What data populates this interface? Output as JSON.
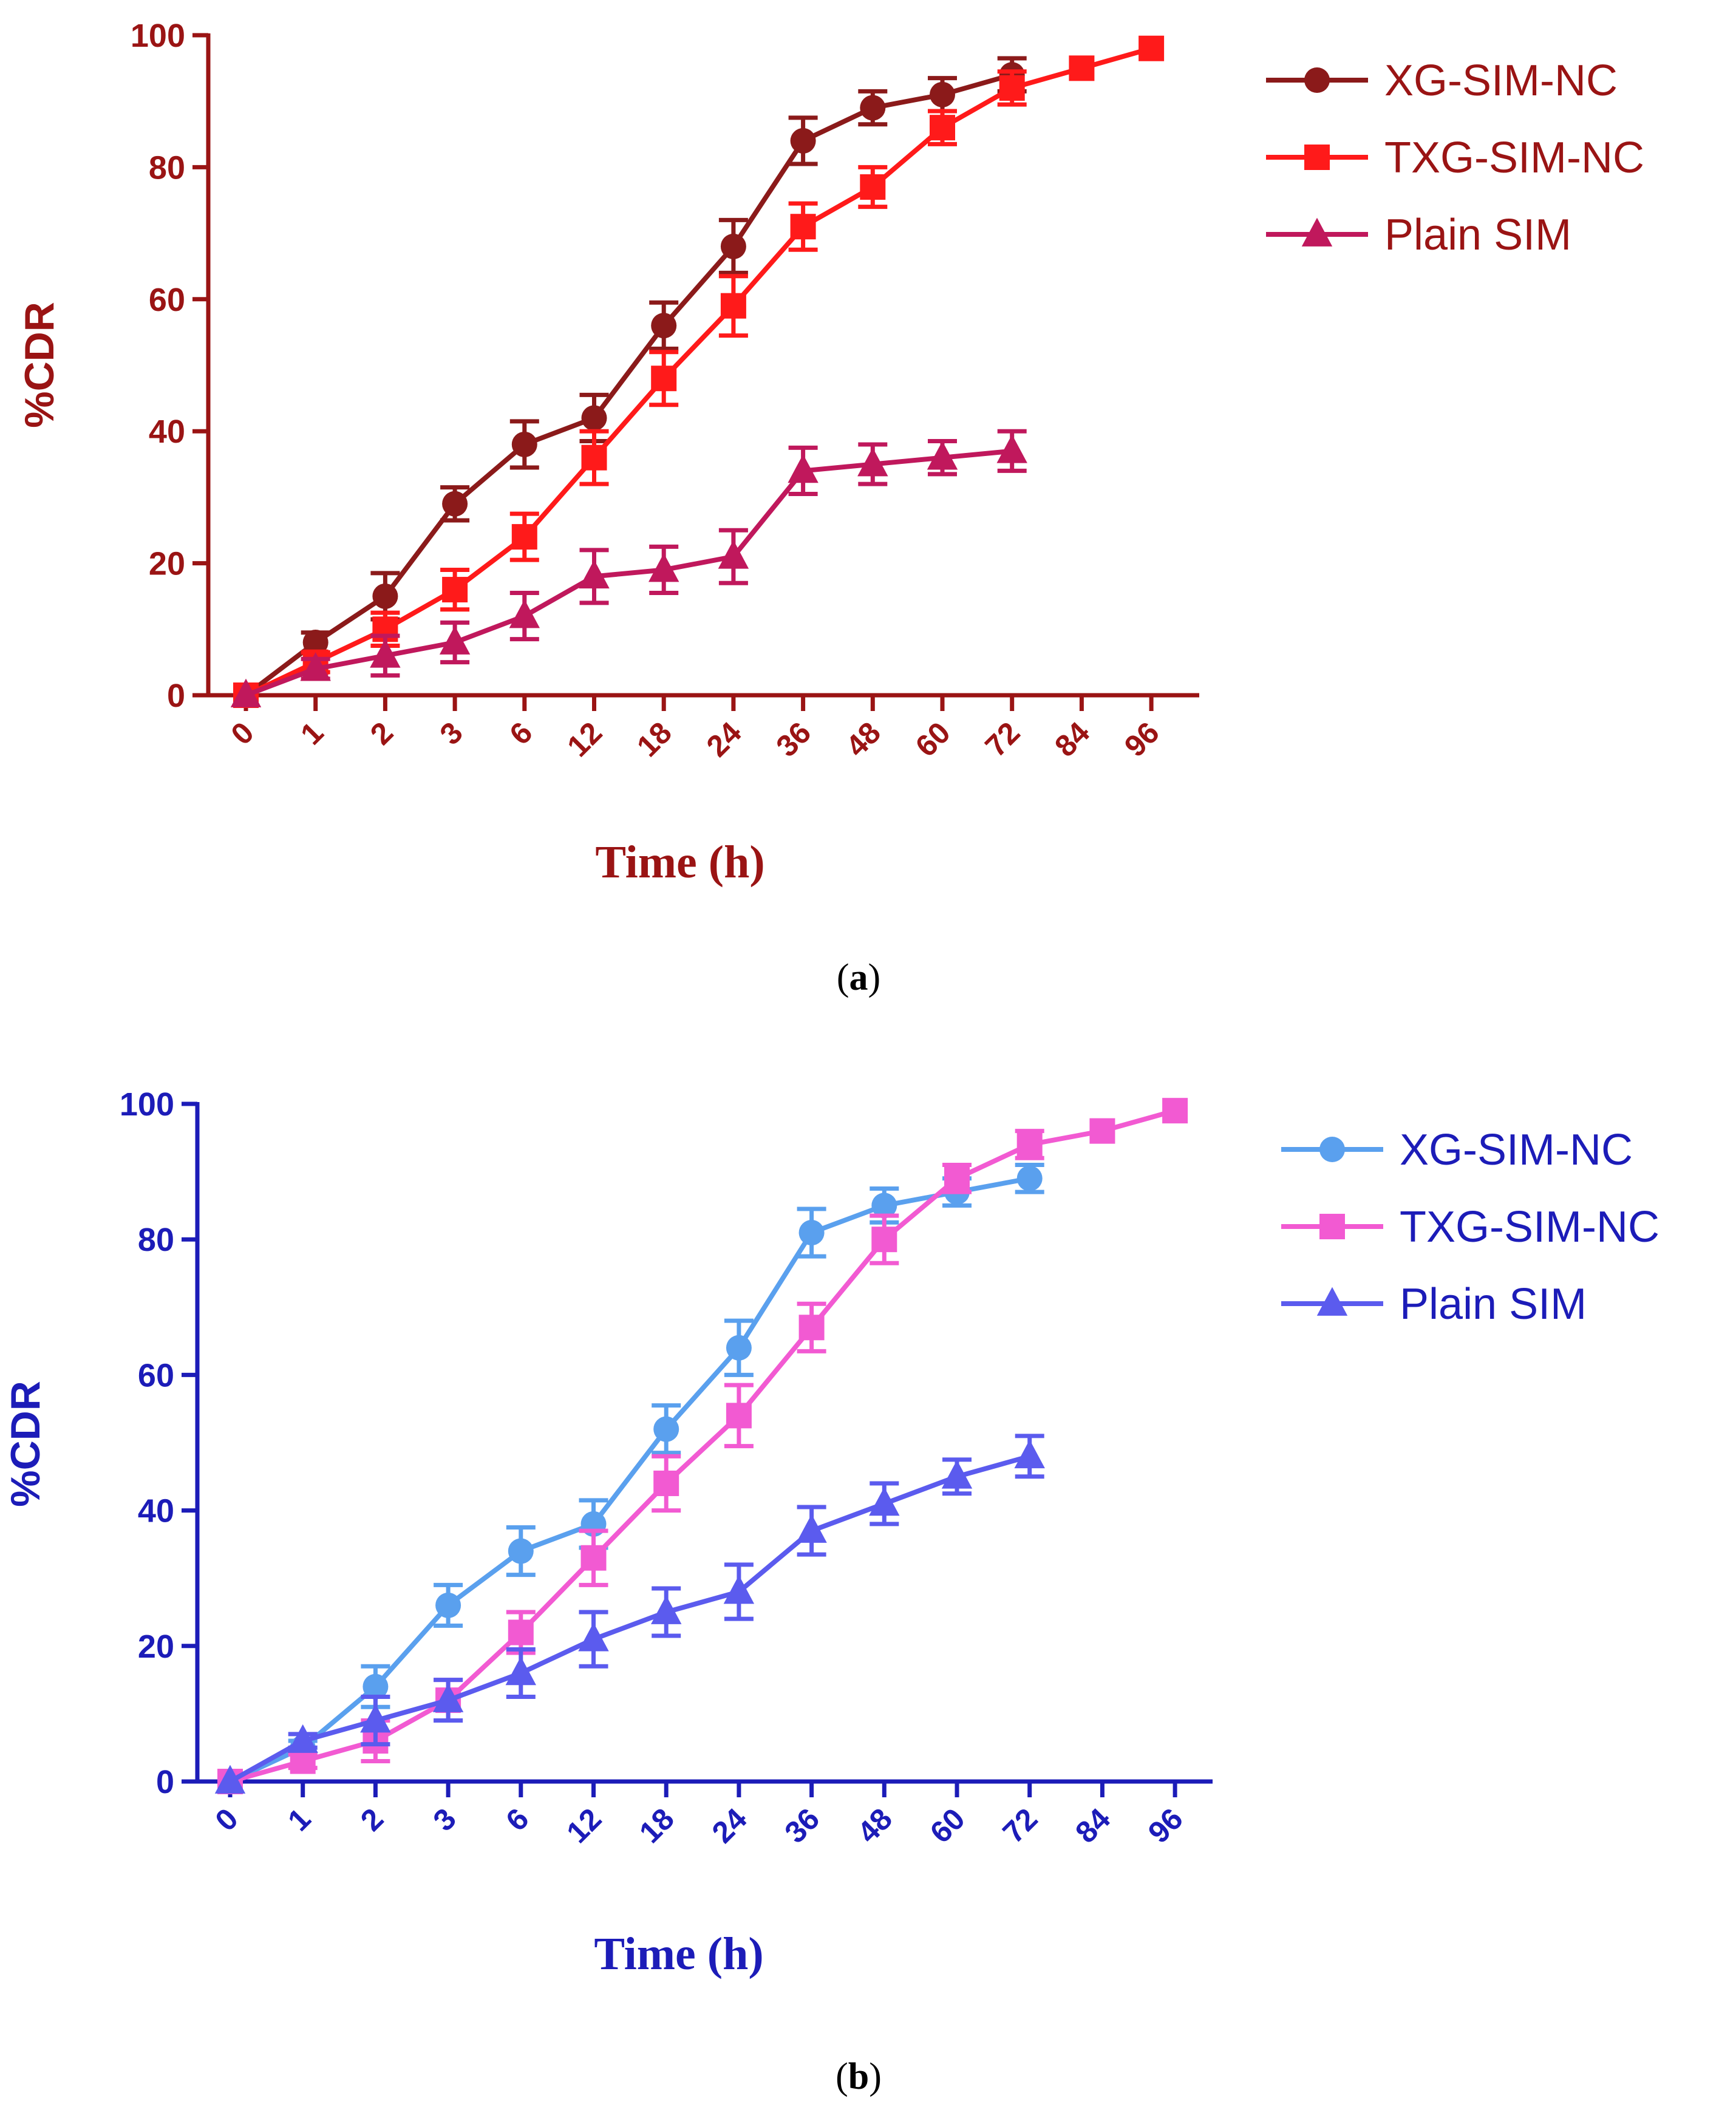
{
  "chart_data": [
    {
      "type": "line",
      "panel": "a",
      "title": "",
      "xlabel": "Time (h)",
      "ylabel": "%CDR",
      "ylim": [
        0,
        100
      ],
      "yticks": [
        "0",
        "20",
        "40",
        "60",
        "80",
        "100"
      ],
      "categories": [
        "0",
        "1",
        "2",
        "3",
        "6",
        "12",
        "18",
        "24",
        "36",
        "48",
        "60",
        "72",
        "84",
        "96"
      ],
      "axis_color": "#9a1414",
      "legend_position": "top-right",
      "series": [
        {
          "name": "XG-SIM-NC",
          "marker": "circle",
          "color": "#8b1a1a",
          "values": [
            0,
            8,
            15,
            29,
            38,
            42,
            56,
            68,
            84,
            89,
            91,
            94,
            null,
            null
          ],
          "errors": [
            0,
            1.5,
            3.5,
            2.5,
            3.5,
            3.5,
            3.5,
            4,
            3.5,
            2.5,
            2.5,
            2.5,
            null,
            null
          ]
        },
        {
          "name": "TXG-SIM-NC",
          "marker": "square",
          "color": "#ff1a1a",
          "values": [
            0,
            5,
            10,
            16,
            24,
            36,
            48,
            59,
            71,
            77,
            86,
            92,
            95,
            98
          ],
          "errors": [
            0,
            1.5,
            2.5,
            3,
            3.5,
            4,
            4,
            4.5,
            3.5,
            3,
            2.5,
            2.5,
            0,
            0
          ]
        },
        {
          "name": "Plain SIM",
          "marker": "triangle",
          "color": "#c0185c",
          "values": [
            0,
            4,
            6,
            8,
            12,
            18,
            19,
            21,
            34,
            35,
            36,
            37,
            null,
            null
          ],
          "errors": [
            0,
            1.5,
            3,
            3,
            3.5,
            4,
            3.5,
            4,
            3.5,
            3,
            2.5,
            3,
            null,
            null
          ]
        }
      ],
      "caption": {
        "open": "(",
        "letter": "a",
        "close": ")"
      }
    },
    {
      "type": "line",
      "panel": "b",
      "title": "",
      "xlabel": "Time (h)",
      "ylabel": "%CDR",
      "ylim": [
        0,
        100
      ],
      "yticks": [
        "0",
        "20",
        "40",
        "60",
        "80",
        "100"
      ],
      "categories": [
        "0",
        "1",
        "2",
        "3",
        "6",
        "12",
        "18",
        "24",
        "36",
        "48",
        "60",
        "72",
        "84",
        "96"
      ],
      "axis_color": "#1c1cb8",
      "legend_position": "top-right",
      "series": [
        {
          "name": "XG-SIM-NC",
          "marker": "circle",
          "color": "#5aa0ee",
          "values": [
            0,
            5,
            14,
            26,
            34,
            38,
            52,
            64,
            81,
            85,
            87,
            89,
            null,
            null
          ],
          "errors": [
            0,
            1,
            3,
            3,
            3.5,
            3.5,
            3.5,
            4,
            3.5,
            2.5,
            2,
            2,
            null,
            null
          ]
        },
        {
          "name": "TXG-SIM-NC",
          "marker": "square",
          "color": "#f25ad2",
          "values": [
            0,
            3,
            6,
            12,
            22,
            33,
            44,
            54,
            67,
            80,
            89,
            94,
            96,
            99
          ],
          "errors": [
            0,
            1,
            3,
            3,
            3,
            4,
            4,
            4.5,
            3.5,
            3.5,
            2,
            2,
            0,
            0
          ]
        },
        {
          "name": "Plain SIM",
          "marker": "triangle",
          "color": "#5b5bee",
          "values": [
            0,
            6,
            9,
            12,
            16,
            21,
            25,
            28,
            37,
            41,
            45,
            48,
            null,
            null
          ],
          "errors": [
            0,
            1,
            3.5,
            3,
            3.5,
            4,
            3.5,
            4,
            3.5,
            3,
            2.5,
            3,
            null,
            null
          ]
        }
      ],
      "caption": {
        "open": "(",
        "letter": "b",
        "close": ")"
      }
    }
  ]
}
